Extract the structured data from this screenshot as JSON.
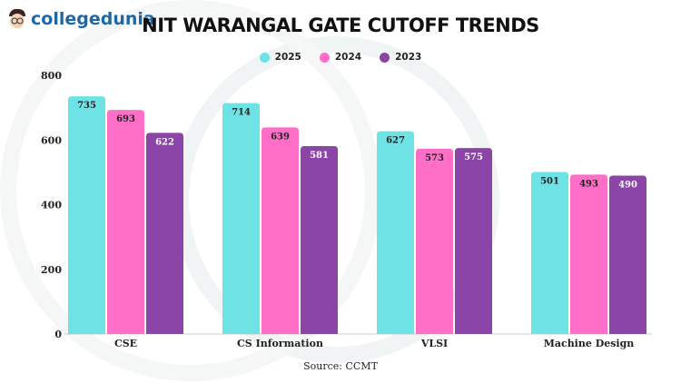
{
  "logo": {
    "text": "collegedunia"
  },
  "chart_data": {
    "type": "bar",
    "title": "NIT WARANGAL GATE CUTOFF TRENDS",
    "categories": [
      "CSE",
      "CS Information",
      "VLSI",
      "Machine Design"
    ],
    "series": [
      {
        "name": "2025",
        "color": "#6de3e5",
        "values": [
          735,
          714,
          627,
          501
        ]
      },
      {
        "name": "2024",
        "color": "#ff6ec7",
        "values": [
          693,
          639,
          573,
          493
        ]
      },
      {
        "name": "2023",
        "color": "#8a45a6",
        "values": [
          622,
          581,
          575,
          490
        ]
      }
    ],
    "ylim": [
      0,
      800
    ],
    "yticks": [
      0,
      200,
      400,
      600,
      800
    ],
    "legend": "top-center",
    "grid": false,
    "xlabel": "",
    "ylabel": ""
  },
  "source": "Source: CCMT"
}
